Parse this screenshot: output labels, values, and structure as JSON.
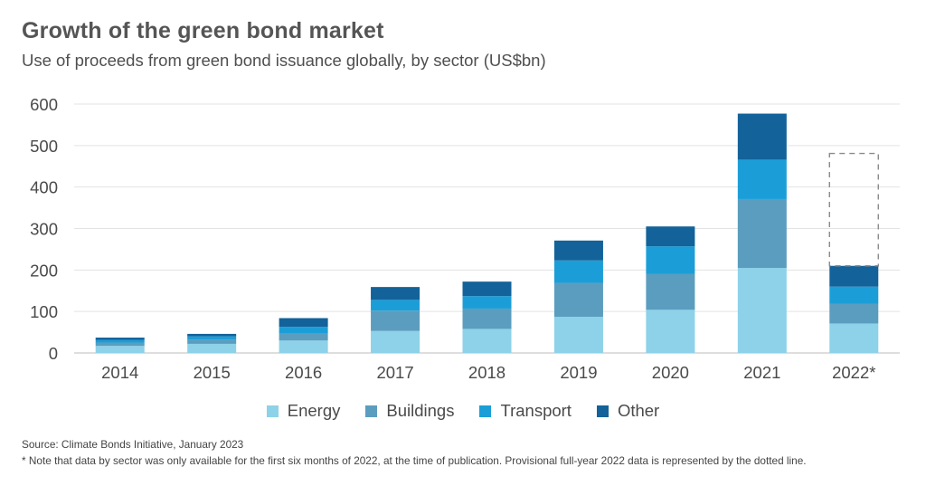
{
  "title": "Growth of the green bond market",
  "subtitle": "Use of proceeds from green bond issuance globally, by sector (US$bn)",
  "source": "Source: Climate Bonds Initiative, January 2023",
  "note": "* Note that data by sector was only available for the first six months of 2022, at the time of publication. Provisional full-year 2022 data is represented by the dotted line.",
  "chart_data": {
    "type": "bar",
    "stacked": true,
    "categories": [
      "2014",
      "2015",
      "2016",
      "2017",
      "2018",
      "2019",
      "2020",
      "2021",
      "2022*"
    ],
    "series": [
      {
        "name": "Energy",
        "color": "#8dd2e8",
        "values": [
          17,
          22,
          30,
          53,
          58,
          87,
          104,
          205,
          71
        ]
      },
      {
        "name": "Buildings",
        "color": "#5b9dbf",
        "values": [
          8,
          10,
          18,
          49,
          49,
          82,
          86,
          166,
          47
        ]
      },
      {
        "name": "Transport",
        "color": "#1b9ed8",
        "values": [
          6,
          8,
          15,
          26,
          30,
          54,
          67,
          95,
          42
        ]
      },
      {
        "name": "Other",
        "color": "#13629a",
        "values": [
          6,
          6,
          21,
          31,
          35,
          48,
          48,
          111,
          50
        ]
      }
    ],
    "provisional_total": {
      "category": "2022*",
      "value": 481
    },
    "ylim": [
      0,
      600
    ],
    "yticks": [
      0,
      100,
      200,
      300,
      400,
      500,
      600
    ],
    "grid": true,
    "legend_position": "bottom"
  }
}
